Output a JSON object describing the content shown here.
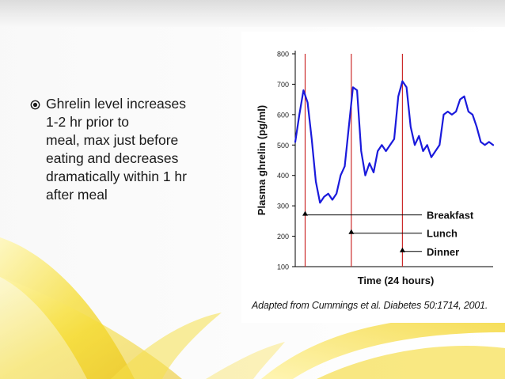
{
  "slide": {
    "bullet_text": "Ghrelin level increases\n1-2 hr prior to\nmeal, max just before\neating and decreases\ndramatically within 1 hr\nafter meal",
    "citation": "Adapted from Cummings et al. Diabetes 50:1714, 2001."
  },
  "colors": {
    "line": "#1a1adc",
    "meal_marker": "#cc2a2a",
    "accent_yellow": "#f2dc2a"
  },
  "chart_data": {
    "type": "line",
    "title": "",
    "xlabel": "Time (24 hours)",
    "ylabel": "Plasma ghrelin (pg/ml)",
    "ylim": [
      100,
      800
    ],
    "yticks": [
      800,
      700,
      600,
      500,
      400,
      300,
      200,
      100
    ],
    "xlim": [
      0,
      24
    ],
    "grid": false,
    "series": [
      {
        "x": [
          0,
          0.5,
          1,
          1.5,
          2,
          2.5,
          3,
          3.5,
          4,
          4.5,
          5,
          5.5,
          6,
          6.5,
          7,
          7.5,
          8,
          8.5,
          9,
          9.5,
          10,
          10.5,
          11,
          11.5,
          12,
          12.5,
          13,
          13.5,
          14,
          14.5,
          15,
          15.5,
          16,
          16.5,
          17,
          17.5,
          18,
          18.5,
          19,
          19.5,
          20,
          20.5,
          21,
          21.5,
          22,
          22.5,
          23,
          23.5,
          24
        ],
        "y": [
          510,
          600,
          680,
          640,
          520,
          380,
          310,
          330,
          340,
          320,
          340,
          400,
          430,
          560,
          690,
          680,
          480,
          400,
          440,
          410,
          480,
          500,
          480,
          500,
          520,
          660,
          710,
          690,
          560,
          500,
          530,
          480,
          500,
          460,
          480,
          500,
          600,
          610,
          600,
          610,
          650,
          660,
          610,
          600,
          560,
          510,
          500,
          510,
          500
        ]
      }
    ],
    "meals": [
      {
        "name": "Breakfast",
        "time": 1.2
      },
      {
        "name": "Lunch",
        "time": 6.8
      },
      {
        "name": "Dinner",
        "time": 13.0
      }
    ]
  }
}
